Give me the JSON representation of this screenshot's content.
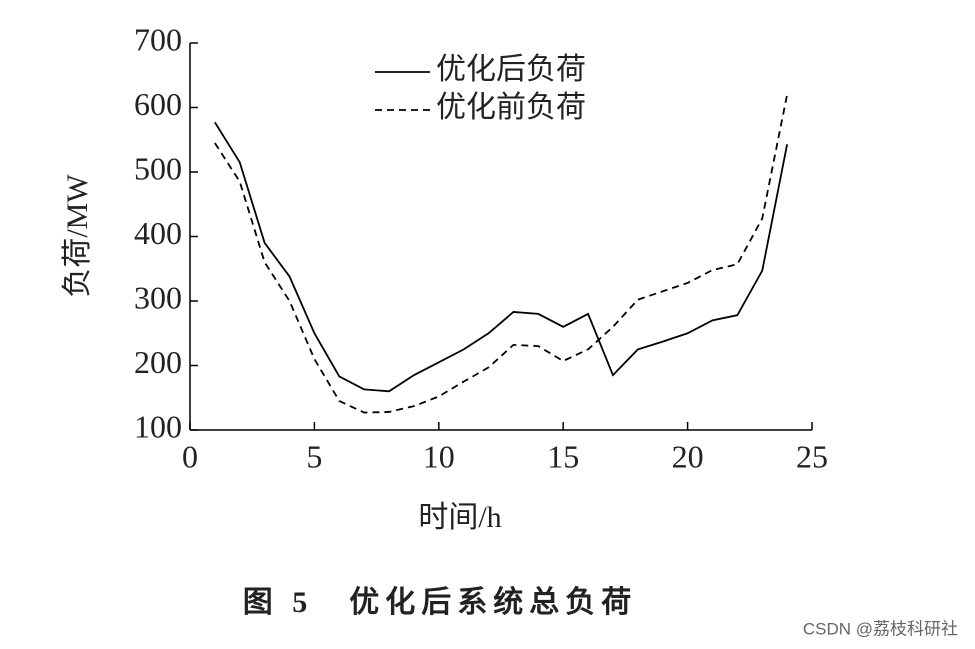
{
  "chart_data": {
    "type": "line",
    "title": "图 5　优化后系统总负荷",
    "xlabel": "时间/h",
    "ylabel": "负荷/MW",
    "watermark": "CSDN @荔枝科研社",
    "x": [
      1,
      2,
      3,
      4,
      5,
      6,
      7,
      8,
      9,
      10,
      11,
      12,
      13,
      14,
      15,
      16,
      17,
      18,
      19,
      20,
      21,
      22,
      23,
      24
    ],
    "series": [
      {
        "name": "优化后负荷",
        "color": "#000000",
        "dash": "solid",
        "values": [
          577,
          515,
          390,
          338,
          250,
          183,
          163,
          160,
          185,
          205,
          225,
          250,
          283,
          280,
          260,
          280,
          185,
          225,
          237,
          250,
          270,
          278,
          347,
          543
        ]
      },
      {
        "name": "优化前负荷",
        "color": "#000000",
        "dash": "dashed",
        "values": [
          545,
          485,
          360,
          300,
          210,
          145,
          127,
          128,
          137,
          152,
          175,
          197,
          232,
          230,
          207,
          225,
          260,
          302,
          315,
          328,
          348,
          357,
          428,
          620
        ]
      }
    ],
    "xlim": [
      0,
      25
    ],
    "xticks": [
      0,
      5,
      10,
      15,
      20,
      25
    ],
    "ylim": [
      100,
      700
    ],
    "yticks": [
      100,
      200,
      300,
      400,
      500,
      600,
      700
    ],
    "grid": false,
    "legend": "top"
  }
}
